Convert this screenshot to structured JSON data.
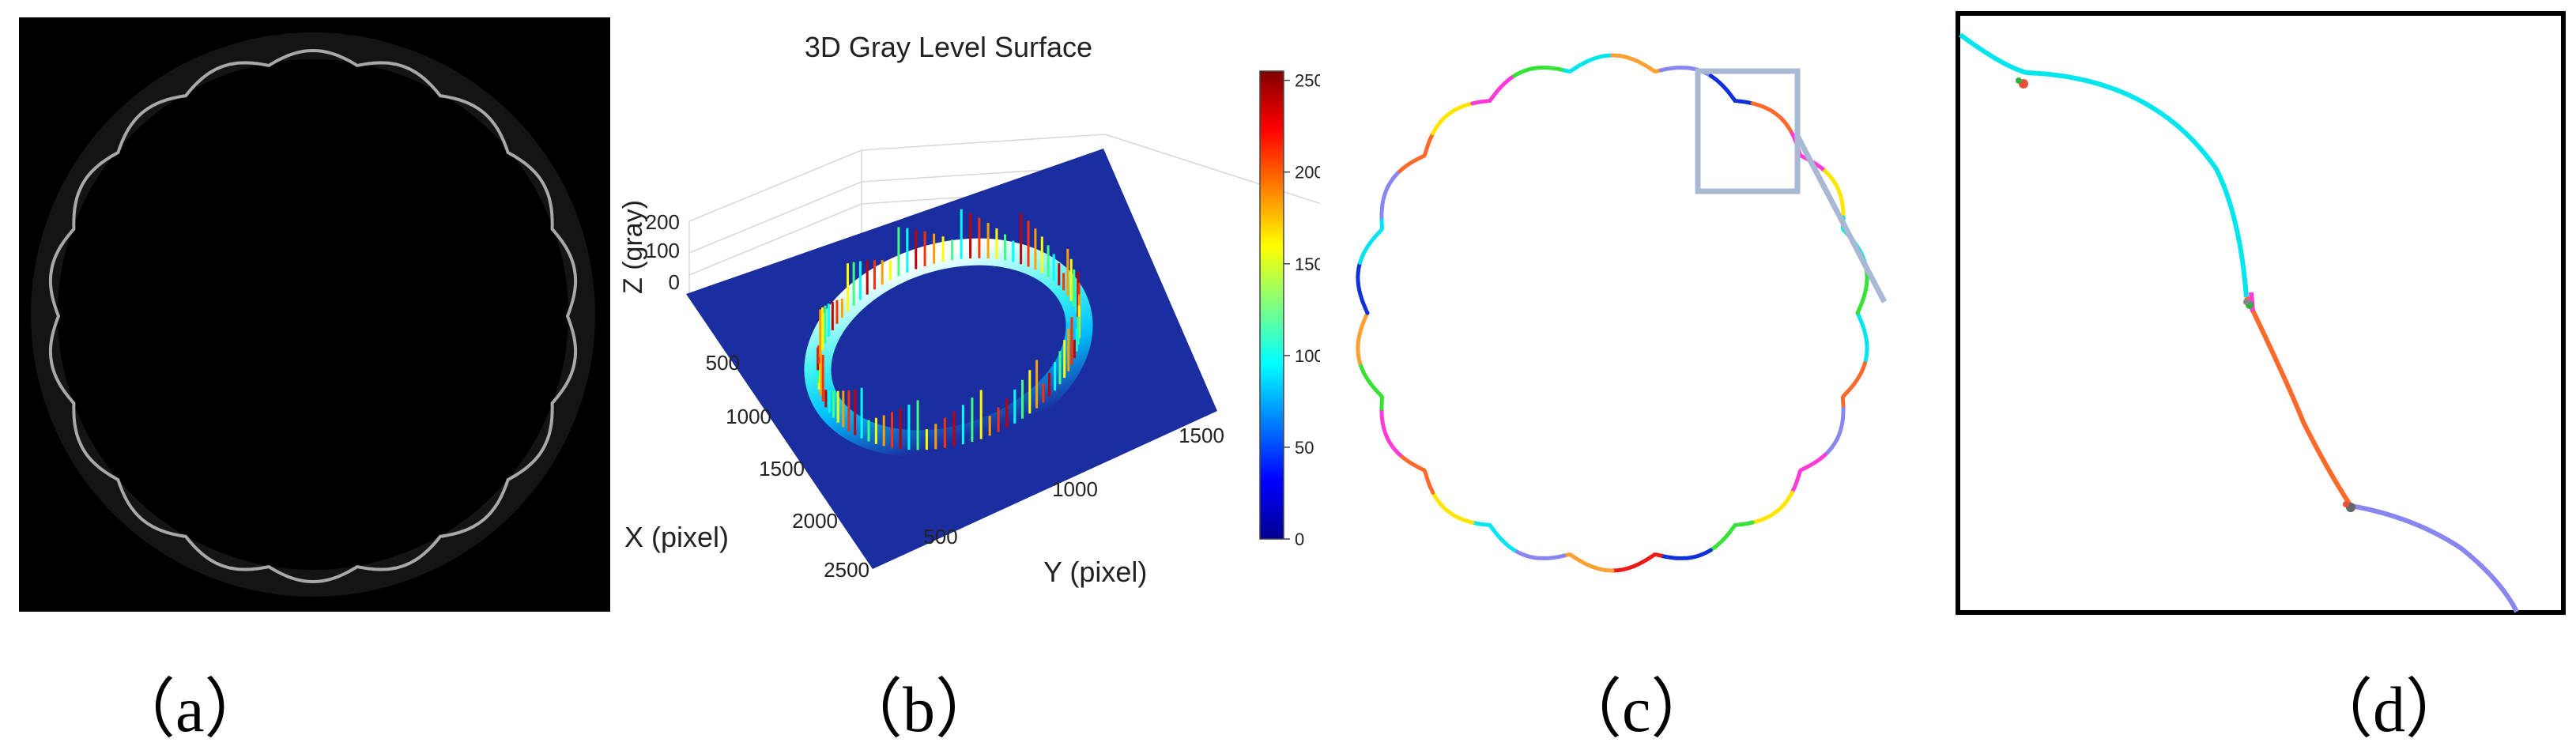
{
  "panels": {
    "a": {
      "caption": "（a）"
    },
    "b": {
      "caption": "（b）",
      "chart_data": {
        "type": "surface3d",
        "title": "3D Gray Level Surface",
        "xlabel": "X (pixel)",
        "ylabel": "Y (pixel)",
        "zlabel": "Z (gray)",
        "x_ticks": [
          500,
          1000,
          1500,
          2000,
          2500
        ],
        "y_ticks": [
          500,
          1000,
          1500
        ],
        "z_ticks": [
          0,
          100,
          200
        ],
        "colorbar": {
          "min": 0,
          "max": 255,
          "ticks": [
            0,
            50,
            100,
            150,
            200,
            250
          ]
        }
      }
    },
    "c": {
      "caption": "（c）"
    },
    "d": {
      "caption": "（d）"
    }
  },
  "colors": {
    "background_a": "#000000",
    "surface_base": "#1b2ea0",
    "zoom_box": "#a9b8d3",
    "segments": [
      "#00e5ee",
      "#ff6a2a",
      "#8a86ef",
      "#ff3ad6",
      "#ffe600",
      "#36e236",
      "#1030d8",
      "#ee1a1a",
      "#ffa033"
    ]
  }
}
